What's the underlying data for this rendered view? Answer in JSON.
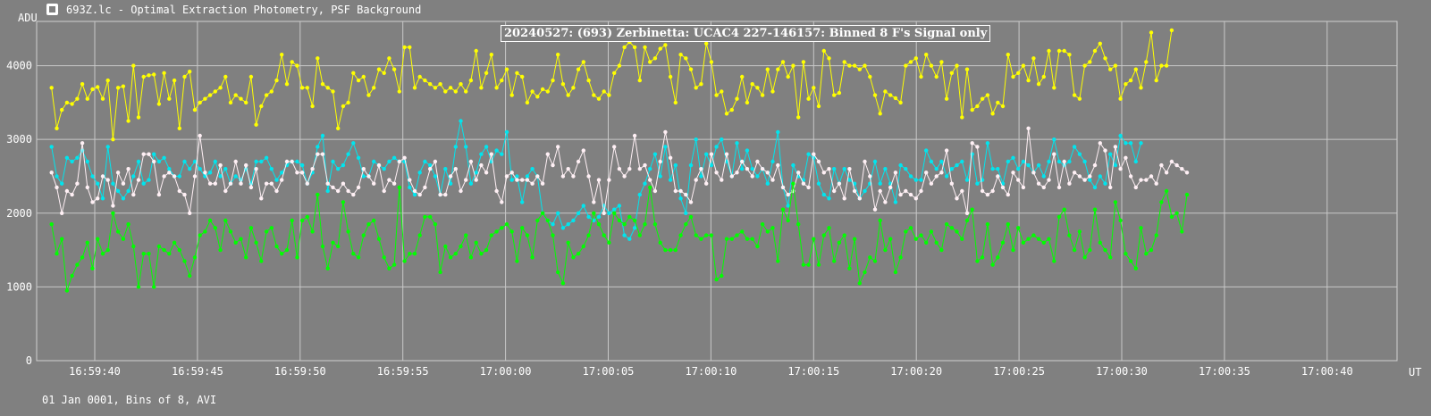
{
  "window": {
    "title": "693Z.lc - Optimal Extraction Photometry, PSF Background",
    "icon": "lightcurve-app-icon"
  },
  "footer": "01 Jan 0001, Bins of 8, AVI",
  "chart_data": {
    "type": "line",
    "title": "20240527: (693) Zerbinetta: UCAC4 227-146157: Binned 8 F's Signal only",
    "ylabel": "ADU",
    "xlabel": "UT",
    "ylim": [
      0,
      4600
    ],
    "yticks": [
      0,
      1000,
      2000,
      3000,
      4000
    ],
    "xticks": [
      "16:59:40",
      "16:59:45",
      "16:59:50",
      "16:59:55",
      "17:00:00",
      "17:00:05",
      "17:00:10",
      "17:00:15",
      "17:00:20",
      "17:00:25",
      "17:00:30",
      "17:00:35",
      "17:00:40"
    ],
    "x_tick_interval_s": 5,
    "first_point_offset_s": -2.1,
    "point_interval_s": 0.249,
    "grid": true,
    "series": [
      {
        "color": "#ffff00",
        "values": [
          3700,
          3150,
          3400,
          3500,
          3480,
          3550,
          3750,
          3550,
          3680,
          3710,
          3550,
          3800,
          3000,
          3700,
          3720,
          3250,
          4000,
          3300,
          3850,
          3870,
          3880,
          3480,
          3900,
          3550,
          3800,
          3150,
          3850,
          3920,
          3400,
          3500,
          3550,
          3600,
          3650,
          3700,
          3850,
          3500,
          3600,
          3550,
          3500,
          3850,
          3200,
          3450,
          3600,
          3650,
          3800,
          4150,
          3750,
          4050,
          4000,
          3700,
          3700,
          3450,
          4100,
          3750,
          3700,
          3650,
          3150,
          3450,
          3500,
          3900,
          3800,
          3850,
          3600,
          3700,
          3950,
          3900,
          4100,
          3950,
          3650,
          4250,
          4250,
          3700,
          3850,
          3800,
          3750,
          3700,
          3750,
          3650,
          3700,
          3650,
          3750,
          3650,
          3800,
          4200,
          3700,
          3900,
          4150,
          3700,
          3800,
          3950,
          3600,
          3900,
          3850,
          3500,
          3650,
          3580,
          3680,
          3650,
          3800,
          4150,
          3750,
          3600,
          3700,
          3950,
          4050,
          3800,
          3600,
          3550,
          3650,
          3600,
          3900,
          4000,
          4250,
          4320,
          4250,
          3800,
          4250,
          4050,
          4100,
          4230,
          4280,
          3850,
          3500,
          4150,
          4100,
          3950,
          3700,
          3750,
          4300,
          4050,
          3600,
          3650,
          3350,
          3400,
          3550,
          3850,
          3500,
          3750,
          3700,
          3600,
          3950,
          3650,
          3950,
          4050,
          3850,
          4000,
          3300,
          4050,
          3550,
          3700,
          3450,
          4200,
          4100,
          3600,
          3630,
          4050,
          4000,
          4000,
          3950,
          4000,
          3850,
          3600,
          3350,
          3650,
          3600,
          3560,
          3500,
          4000,
          4050,
          4100,
          3850,
          4150,
          4000,
          3850,
          4050,
          3550,
          3900,
          4000,
          3300,
          3950,
          3400,
          3450,
          3550,
          3600,
          3350,
          3500,
          3450,
          4150,
          3850,
          3900,
          4000,
          3800,
          4100,
          3750,
          3850,
          4200,
          3700,
          4200,
          4200,
          4150,
          3600,
          3550,
          4000,
          4050,
          4200,
          4300,
          4100,
          3950,
          4000,
          3550,
          3750,
          3800,
          3950,
          3700,
          4050,
          4450,
          3800,
          4000,
          4000,
          4480
        ]
      },
      {
        "color": "#00e5ee",
        "values": [
          2900,
          2500,
          2400,
          2750,
          2700,
          2750,
          2850,
          2700,
          2500,
          2400,
          2200,
          2900,
          2400,
          2300,
          2200,
          2300,
          2500,
          2700,
          2400,
          2450,
          2800,
          2700,
          2750,
          2600,
          2500,
          2500,
          2700,
          2600,
          2700,
          2600,
          2500,
          2550,
          2700,
          2500,
          2600,
          2400,
          2500,
          2450,
          2600,
          2400,
          2700,
          2700,
          2750,
          2600,
          2450,
          2550,
          2650,
          2700,
          2700,
          2650,
          2400,
          2550,
          2900,
          3050,
          2300,
          2700,
          2600,
          2650,
          2800,
          2950,
          2750,
          2500,
          2500,
          2700,
          2650,
          2600,
          2700,
          2750,
          2700,
          2700,
          2350,
          2250,
          2550,
          2700,
          2650,
          2500,
          2250,
          2600,
          2400,
          2900,
          3250,
          2900,
          2400,
          2550,
          2800,
          2900,
          2700,
          2850,
          2800,
          3100,
          2450,
          2500,
          2150,
          2500,
          2600,
          2500,
          2000,
          1900,
          1850,
          2000,
          1800,
          1850,
          1900,
          2000,
          2100,
          1950,
          1900,
          1950,
          2100,
          2000,
          2050,
          2100,
          1700,
          1650,
          1800,
          2250,
          2400,
          2600,
          2800,
          2500,
          2900,
          2450,
          2650,
          2200,
          2000,
          2650,
          3000,
          2500,
          2800,
          2650,
          2900,
          3000,
          2700,
          2500,
          2950,
          2600,
          2850,
          2600,
          2500,
          2600,
          2400,
          2700,
          3100,
          2350,
          2100,
          2650,
          2500,
          2450,
          2800,
          2750,
          2400,
          2250,
          2200,
          2600,
          2400,
          2600,
          2450,
          2400,
          2200,
          2300,
          2400,
          2700,
          2400,
          2600,
          2400,
          2150,
          2650,
          2600,
          2500,
          2450,
          2450,
          2850,
          2700,
          2600,
          2700,
          2500,
          2600,
          2650,
          2700,
          2450,
          2800,
          2400,
          2450,
          2950,
          2600,
          2600,
          2400,
          2700,
          2750,
          2600,
          2700,
          2650,
          2550,
          2650,
          2500,
          2700,
          3000,
          2700,
          2650,
          2700,
          2900,
          2800,
          2700,
          2450,
          2350,
          2500,
          2400,
          2800,
          2650,
          3050,
          2950,
          2950,
          2700,
          2950
        ]
      },
      {
        "color": "#fff0f5",
        "values": [
          2550,
          2350,
          2000,
          2300,
          2250,
          2400,
          2950,
          2350,
          2150,
          2200,
          2500,
          2450,
          2100,
          2550,
          2400,
          2600,
          2250,
          2450,
          2800,
          2800,
          2700,
          2250,
          2500,
          2550,
          2500,
          2300,
          2250,
          2000,
          2500,
          3050,
          2550,
          2400,
          2400,
          2650,
          2300,
          2400,
          2700,
          2400,
          2650,
          2350,
          2600,
          2200,
          2400,
          2400,
          2300,
          2450,
          2700,
          2700,
          2550,
          2550,
          2400,
          2600,
          2800,
          2800,
          2400,
          2350,
          2300,
          2400,
          2300,
          2250,
          2350,
          2600,
          2500,
          2400,
          2650,
          2300,
          2450,
          2400,
          2700,
          2750,
          2450,
          2300,
          2250,
          2350,
          2600,
          2700,
          2250,
          2250,
          2500,
          2600,
          2300,
          2450,
          2700,
          2450,
          2650,
          2550,
          2800,
          2300,
          2150,
          2500,
          2550,
          2450,
          2450,
          2450,
          2400,
          2500,
          2400,
          2800,
          2650,
          2900,
          2500,
          2600,
          2500,
          2700,
          2850,
          2500,
          2150,
          2450,
          2000,
          2450,
          2900,
          2600,
          2500,
          2600,
          3050,
          2600,
          2650,
          2450,
          2300,
          2700,
          3100,
          2750,
          2300,
          2300,
          2250,
          2150,
          2450,
          2600,
          2400,
          2800,
          2550,
          2450,
          2800,
          2500,
          2550,
          2700,
          2600,
          2500,
          2700,
          2600,
          2550,
          2450,
          2650,
          2350,
          2250,
          2300,
          2550,
          2400,
          2350,
          2800,
          2700,
          2550,
          2600,
          2300,
          2400,
          2200,
          2600,
          2300,
          2200,
          2700,
          2500,
          2050,
          2300,
          2150,
          2350,
          2550,
          2250,
          2300,
          2250,
          2200,
          2300,
          2550,
          2400,
          2500,
          2550,
          2850,
          2400,
          2200,
          2300,
          2000,
          2950,
          2900,
          2300,
          2250,
          2300,
          2500,
          2350,
          2250,
          2550,
          2450,
          2350,
          3150,
          2550,
          2400,
          2350,
          2450,
          2800,
          2350,
          2700,
          2400,
          2550,
          2500,
          2450,
          2500,
          2650,
          2950,
          2850,
          2350,
          2900,
          2600,
          2750,
          2500,
          2350,
          2450,
          2450,
          2500,
          2400,
          2650,
          2550,
          2700,
          2650,
          2600,
          2550
        ]
      },
      {
        "color": "#00ff00",
        "values": [
          1850,
          1450,
          1650,
          950,
          1150,
          1300,
          1400,
          1600,
          1250,
          1650,
          1450,
          1500,
          2000,
          1750,
          1650,
          1850,
          1550,
          1000,
          1450,
          1450,
          1000,
          1550,
          1500,
          1450,
          1600,
          1500,
          1350,
          1150,
          1400,
          1700,
          1750,
          1900,
          1800,
          1500,
          1900,
          1750,
          1600,
          1650,
          1400,
          1800,
          1600,
          1350,
          1750,
          1800,
          1550,
          1450,
          1500,
          1900,
          1400,
          1900,
          1950,
          1750,
          2250,
          1550,
          1250,
          1600,
          1550,
          2150,
          1750,
          1450,
          1400,
          1700,
          1850,
          1900,
          1650,
          1400,
          1250,
          1300,
          2350,
          1350,
          1450,
          1450,
          1700,
          1950,
          1950,
          1850,
          1200,
          1550,
          1400,
          1450,
          1550,
          1700,
          1400,
          1600,
          1450,
          1500,
          1700,
          1750,
          1800,
          1850,
          1750,
          1350,
          1800,
          1700,
          1400,
          1900,
          2000,
          1900,
          1700,
          1200,
          1050,
          1600,
          1400,
          1450,
          1550,
          1700,
          2000,
          1850,
          1700,
          1600,
          2000,
          1900,
          1850,
          1950,
          1900,
          1700,
          1850,
          2350,
          1850,
          1600,
          1500,
          1500,
          1500,
          1700,
          1850,
          1950,
          1700,
          1650,
          1700,
          1700,
          1100,
          1150,
          1650,
          1650,
          1700,
          1750,
          1650,
          1650,
          1550,
          1850,
          1750,
          1800,
          1350,
          2050,
          1900,
          2400,
          1850,
          1300,
          1300,
          1650,
          1300,
          1700,
          1800,
          1350,
          1600,
          1700,
          1250,
          1650,
          1050,
          1200,
          1400,
          1350,
          1900,
          1500,
          1650,
          1200,
          1400,
          1750,
          1800,
          1650,
          1700,
          1600,
          1750,
          1600,
          1500,
          1850,
          1800,
          1750,
          1650,
          1900,
          2050,
          1350,
          1400,
          1850,
          1300,
          1400,
          1600,
          1850,
          1500,
          1800,
          1600,
          1650,
          1700,
          1650,
          1600,
          1650,
          1350,
          1950,
          2050,
          1700,
          1500,
          1750,
          1400,
          1500,
          2050,
          1600,
          1500,
          1400,
          2150,
          1900,
          1450,
          1350,
          1250,
          1800,
          1450,
          1500,
          1700,
          2150,
          2300,
          1950,
          2000,
          1750,
          2250
        ]
      }
    ]
  }
}
